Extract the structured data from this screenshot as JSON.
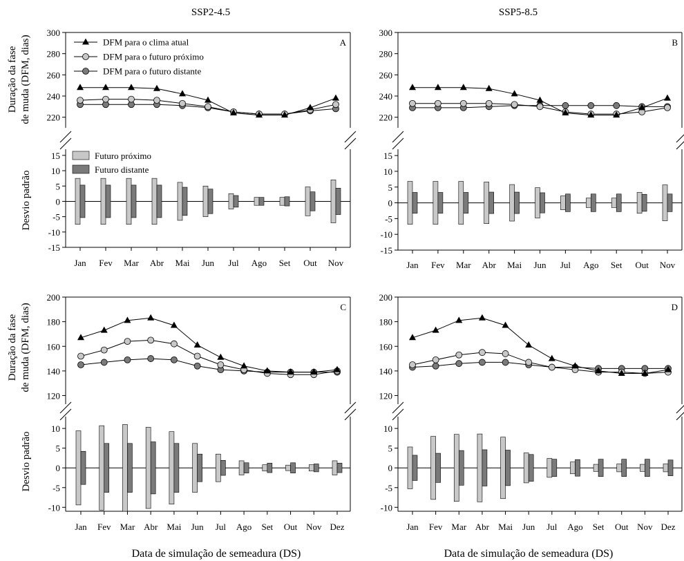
{
  "figure": {
    "column_titles": [
      "SSP2-4.5",
      "SSP5-8.5"
    ],
    "xlabel": "Data de simulação de semeadura (DS)",
    "ylabel_top": [
      "Duração da fase",
      "de muda (DFM, dias)"
    ],
    "ylabel_bottom": "Desvio padrão"
  },
  "chart_data": [
    {
      "type": "line",
      "panel": "A",
      "scenario": "SSP2-4.5",
      "categories": [
        "Jan",
        "Fev",
        "Mar",
        "Abr",
        "Mai",
        "Jun",
        "Jul",
        "Ago",
        "Set",
        "Out",
        "Nov"
      ],
      "ylabel": "Duração da fase de muda (DFM, dias)",
      "ylim": [
        210,
        300
      ],
      "yticks": [
        220,
        240,
        260,
        280,
        300
      ],
      "axis_break": true,
      "legend_position": "top-left",
      "series": [
        {
          "name": "DFM para o clima atual",
          "marker": "triangle",
          "color": "#000000",
          "values": [
            248,
            248,
            248,
            247,
            242,
            236,
            224,
            222,
            222,
            229,
            238
          ]
        },
        {
          "name": "DFM para o futuro próximo",
          "marker": "circle",
          "color": "#c8c8c8",
          "values": [
            236,
            237,
            237,
            236,
            233,
            230,
            225,
            223,
            223,
            227,
            232
          ]
        },
        {
          "name": "DFM para o futuro distante",
          "marker": "circle",
          "color": "#7a7a7a",
          "values": [
            232,
            232,
            232,
            232,
            231,
            229,
            225,
            223,
            223,
            226,
            228
          ]
        }
      ],
      "deviation": {
        "ylabel": "Desvio padrão",
        "ylim": [
          -15,
          17
        ],
        "yticks": [
          -15,
          -10,
          -5,
          0,
          5,
          10,
          15
        ],
        "legend_position": "top-left",
        "series": [
          {
            "name": "Futuro próximo",
            "color": "#c8c8c8",
            "values": [
              7.5,
              7.5,
              7.5,
              7.5,
              6.2,
              5.0,
              2.5,
              1.3,
              1.3,
              4.7,
              7.0
            ]
          },
          {
            "name": "Futuro distante",
            "color": "#7a7a7a",
            "values": [
              5.3,
              5.3,
              5.3,
              5.3,
              4.6,
              4.0,
              1.9,
              1.3,
              1.5,
              3.1,
              4.3
            ]
          }
        ]
      }
    },
    {
      "type": "line",
      "panel": "B",
      "scenario": "SSP5-8.5",
      "categories": [
        "Jan",
        "Fev",
        "Mar",
        "Abr",
        "Mai",
        "Jun",
        "Jul",
        "Ago",
        "Set",
        "Out",
        "Nov"
      ],
      "ylim": [
        210,
        300
      ],
      "yticks": [
        220,
        240,
        260,
        280,
        300
      ],
      "axis_break": true,
      "series": [
        {
          "name": "DFM para o clima atual",
          "marker": "triangle",
          "color": "#000000",
          "values": [
            248,
            248,
            248,
            247,
            242,
            236,
            224,
            222,
            222,
            229,
            238
          ]
        },
        {
          "name": "DFM para o futuro próximo",
          "marker": "circle",
          "color": "#c8c8c8",
          "values": [
            233,
            233,
            233,
            233,
            232,
            230,
            225,
            223,
            223,
            225,
            229
          ]
        },
        {
          "name": "DFM para o futuro distante",
          "marker": "circle",
          "color": "#7a7a7a",
          "values": [
            229,
            229,
            229,
            230,
            231,
            231,
            231,
            231,
            231,
            230,
            230
          ]
        }
      ],
      "deviation": {
        "ylim": [
          -15,
          17
        ],
        "yticks": [
          -15,
          -10,
          -5,
          0,
          5,
          10,
          15
        ],
        "series": [
          {
            "name": "Futuro próximo",
            "color": "#c8c8c8",
            "values": [
              6.8,
              6.8,
              6.8,
              6.6,
              5.8,
              4.8,
              2.2,
              1.5,
              1.5,
              3.3,
              5.7
            ]
          },
          {
            "name": "Futuro distante",
            "color": "#7a7a7a",
            "values": [
              3.3,
              3.3,
              3.3,
              3.4,
              3.4,
              3.2,
              2.8,
              2.8,
              2.8,
              2.7,
              2.8
            ]
          }
        ]
      }
    },
    {
      "type": "line",
      "panel": "C",
      "scenario": "SSP2-4.5",
      "categories": [
        "Jan",
        "Fev",
        "Mar",
        "Abr",
        "Mai",
        "Jun",
        "Jul",
        "Ago",
        "Set",
        "Out",
        "Nov",
        "Dez"
      ],
      "ylabel": "Duração da fase de muda (DFM, dias)",
      "ylim": [
        113,
        200
      ],
      "yticks": [
        120,
        140,
        160,
        180,
        200
      ],
      "axis_break": true,
      "series": [
        {
          "name": "DFM para o clima atual",
          "marker": "triangle",
          "color": "#000000",
          "values": [
            167,
            173,
            181,
            183,
            177,
            161,
            151,
            144,
            140,
            139,
            139,
            141
          ]
        },
        {
          "name": "DFM para o futuro próximo",
          "marker": "circle",
          "color": "#c8c8c8",
          "values": [
            152,
            157,
            164,
            165,
            162,
            152,
            145,
            141,
            138,
            137,
            137,
            140
          ]
        },
        {
          "name": "DFM para o futuro distante",
          "marker": "circle",
          "color": "#7a7a7a",
          "values": [
            145,
            147,
            149,
            150,
            149,
            144,
            141,
            140,
            139,
            139,
            139,
            139
          ]
        }
      ],
      "deviation": {
        "ylabel": "Desvio padrão",
        "ylim": [
          -11,
          13
        ],
        "yticks": [
          -10,
          -5,
          0,
          5,
          10
        ],
        "series": [
          {
            "name": "Futuro próximo",
            "color": "#c8c8c8",
            "values": [
              9.4,
              10.7,
              11.0,
              10.3,
              9.2,
              6.2,
              3.5,
              1.8,
              0.8,
              0.7,
              0.8,
              1.8
            ]
          },
          {
            "name": "Futuro distante",
            "color": "#7a7a7a",
            "values": [
              4.2,
              6.2,
              6.2,
              6.6,
              6.2,
              3.5,
              1.9,
              1.3,
              1.2,
              1.3,
              1.0,
              1.2
            ]
          }
        ]
      }
    },
    {
      "type": "line",
      "panel": "D",
      "scenario": "SSP5-8.5",
      "categories": [
        "Jan",
        "Fev",
        "Mar",
        "Abr",
        "Mai",
        "Jun",
        "Jul",
        "Ago",
        "Set",
        "Out",
        "Nov",
        "Dez"
      ],
      "ylim": [
        113,
        200
      ],
      "yticks": [
        120,
        140,
        160,
        180,
        200
      ],
      "axis_break": true,
      "series": [
        {
          "name": "DFM para o clima atual",
          "marker": "triangle",
          "color": "#000000",
          "values": [
            167,
            173,
            181,
            183,
            177,
            161,
            150,
            144,
            140,
            138,
            138,
            141
          ]
        },
        {
          "name": "DFM para o futuro próximo",
          "marker": "circle",
          "color": "#c8c8c8",
          "values": [
            145,
            149,
            153,
            155,
            154,
            147,
            143,
            141,
            139,
            139,
            138,
            139
          ]
        },
        {
          "name": "DFM para o futuro distante",
          "marker": "circle",
          "color": "#7a7a7a",
          "values": [
            143,
            144,
            146,
            147,
            147,
            145,
            143,
            143,
            142,
            142,
            142,
            142
          ]
        }
      ],
      "deviation": {
        "ylim": [
          -11,
          13
        ],
        "yticks": [
          -10,
          -5,
          0,
          5,
          10
        ],
        "series": [
          {
            "name": "Futuro próximo",
            "color": "#c8c8c8",
            "values": [
              5.3,
              8.0,
              8.5,
              8.6,
              7.8,
              3.8,
              2.4,
              1.5,
              0.9,
              1.0,
              0.9,
              1.0
            ]
          },
          {
            "name": "Futuro distante",
            "color": "#7a7a7a",
            "values": [
              3.2,
              3.7,
              4.4,
              4.6,
              4.5,
              3.4,
              2.2,
              2.1,
              2.2,
              2.2,
              2.2,
              2.0
            ]
          }
        ]
      }
    }
  ]
}
